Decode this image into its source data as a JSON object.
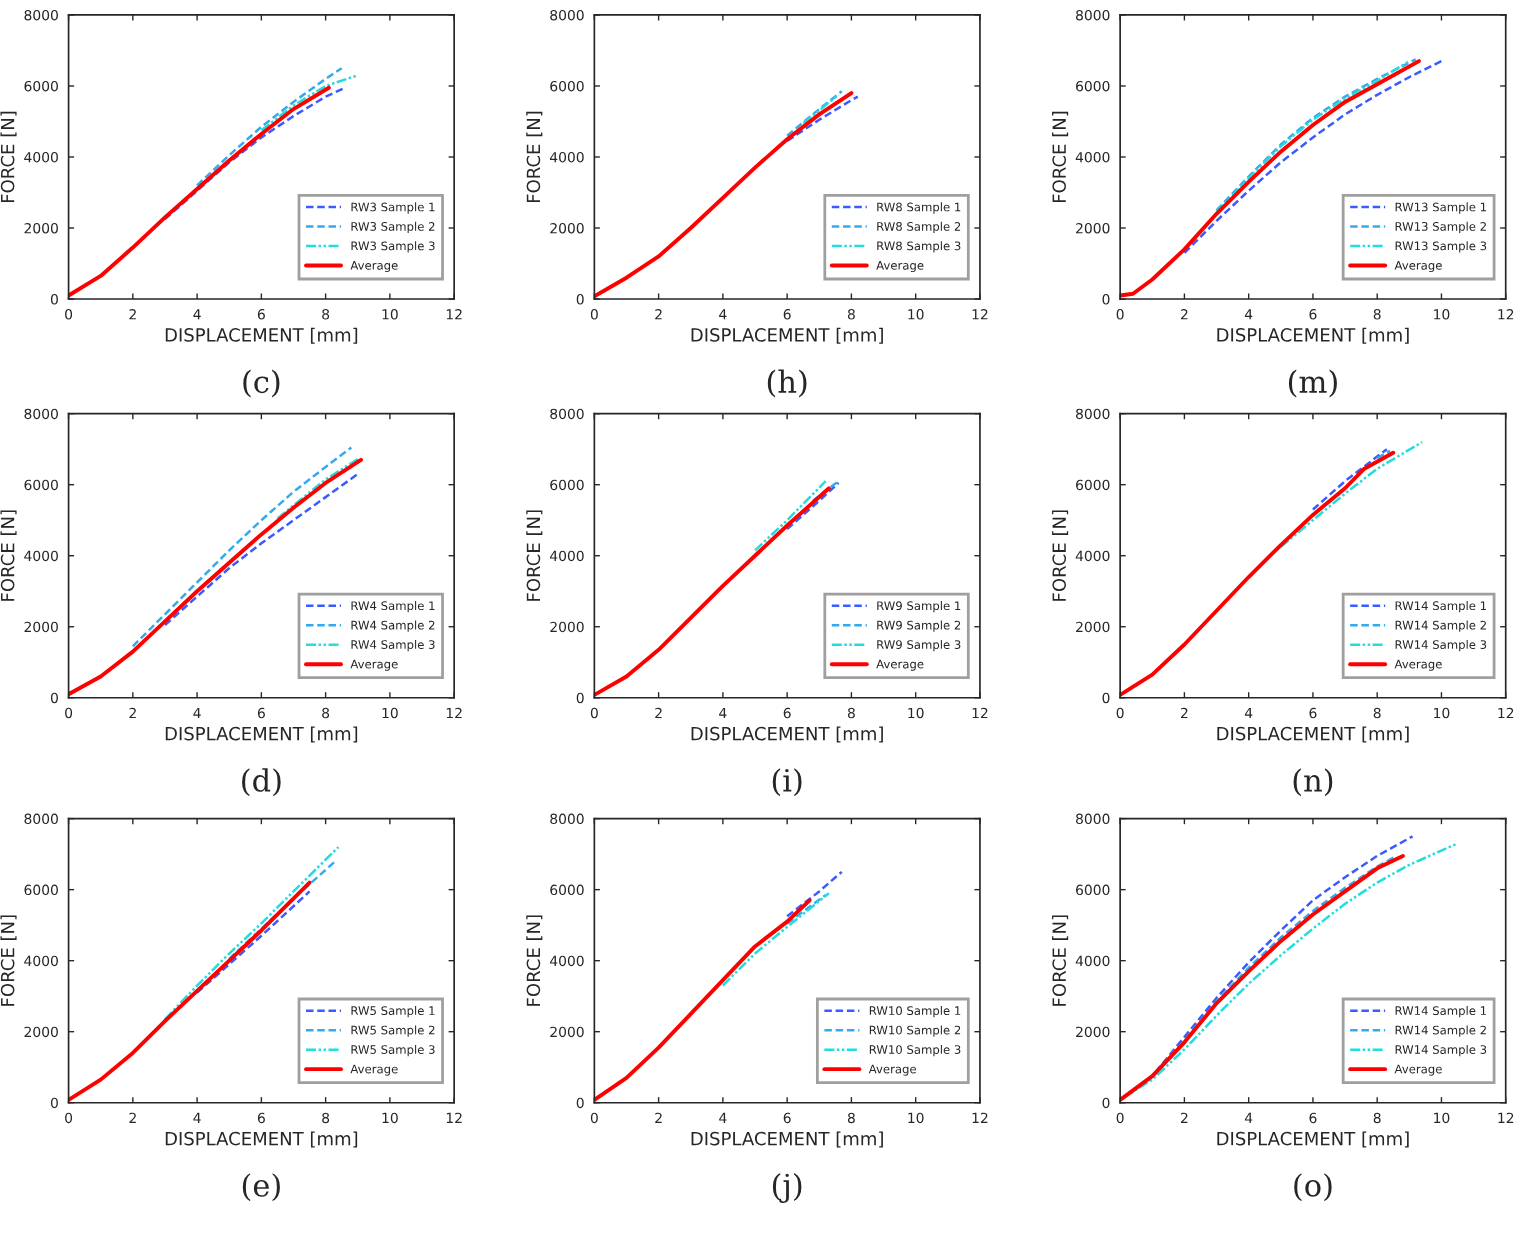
{
  "chart_data": [
    {
      "type": "line",
      "xlabel": "DISPLACEMENT [mm]",
      "ylabel": "FORCE [N]",
      "annotations": [
        "(c)"
      ],
      "xlim": [
        0,
        12
      ],
      "ylim": [
        0,
        8000
      ],
      "xticks": [
        0,
        2,
        4,
        6,
        8,
        10,
        12
      ],
      "yticks": [
        0,
        2000,
        4000,
        6000,
        8000
      ],
      "legend": "bottom right",
      "series": [
        {
          "name": "RW3 Sample 1",
          "color": "#3a5bff",
          "line_style": "dashed",
          "x": [
            3,
            4,
            5,
            6,
            7,
            8,
            8.6
          ],
          "values": [
            2250,
            3050,
            3850,
            4550,
            5150,
            5700,
            5950
          ]
        },
        {
          "name": "RW3 Sample 2",
          "color": "#33aaee",
          "line_style": "dashed",
          "x": [
            4,
            5,
            6,
            7,
            8,
            8.5
          ],
          "values": [
            3200,
            4050,
            4850,
            5550,
            6200,
            6500
          ]
        },
        {
          "name": "RW3 Sample 3",
          "color": "#22dddd",
          "line_style": "dotted",
          "x": [
            6,
            7,
            8,
            9
          ],
          "values": [
            4750,
            5450,
            6000,
            6300
          ]
        },
        {
          "name": "Average",
          "color": "#ff0000",
          "line_style": "solid",
          "x": [
            0,
            1,
            2,
            3,
            4,
            5,
            6,
            7,
            8.1
          ],
          "values": [
            100,
            650,
            1450,
            2300,
            3100,
            3900,
            4650,
            5350,
            5950
          ]
        }
      ]
    },
    {
      "type": "line",
      "xlabel": "DISPLACEMENT [mm]",
      "ylabel": "FORCE [N]",
      "annotations": [
        "(h)"
      ],
      "xlim": [
        0,
        12
      ],
      "ylim": [
        0,
        8000
      ],
      "xticks": [
        0,
        2,
        4,
        6,
        8,
        10,
        12
      ],
      "yticks": [
        0,
        2000,
        4000,
        6000,
        8000
      ],
      "legend": "bottom right",
      "series": [
        {
          "name": "RW8 Sample 1",
          "color": "#3a5bff",
          "line_style": "dashed",
          "x": [
            6,
            7,
            8,
            8.2
          ],
          "values": [
            4450,
            5050,
            5600,
            5700
          ]
        },
        {
          "name": "RW8 Sample 2",
          "color": "#33aaee",
          "line_style": "dashed",
          "x": [
            6,
            7,
            7.7
          ],
          "values": [
            4600,
            5350,
            5850
          ]
        },
        {
          "name": "RW8 Sample 3",
          "color": "#22dddd",
          "line_style": "dotted",
          "x": [
            6.5,
            7.6
          ],
          "values": [
            4950,
            5750
          ]
        },
        {
          "name": "Average",
          "color": "#ff0000",
          "line_style": "solid",
          "x": [
            0,
            1,
            2,
            3,
            4,
            5,
            6,
            7,
            8
          ],
          "values": [
            80,
            600,
            1200,
            2000,
            2850,
            3700,
            4500,
            5200,
            5800
          ]
        }
      ]
    },
    {
      "type": "line",
      "xlabel": "DISPLACEMENT [mm]",
      "ylabel": "FORCE [N]",
      "annotations": [
        "(m)"
      ],
      "xlim": [
        0,
        12
      ],
      "ylim": [
        0,
        8000
      ],
      "xticks": [
        0,
        2,
        4,
        6,
        8,
        10,
        12
      ],
      "yticks": [
        0,
        2000,
        4000,
        6000,
        8000
      ],
      "legend": "bottom right",
      "series": [
        {
          "name": "RW13 Sample 1",
          "color": "#3a5bff",
          "line_style": "dashed",
          "x": [
            2,
            3,
            4,
            5,
            6,
            7,
            8,
            9,
            10
          ],
          "values": [
            1300,
            2200,
            3050,
            3850,
            4550,
            5200,
            5750,
            6250,
            6700
          ]
        },
        {
          "name": "RW13 Sample 2",
          "color": "#33aaee",
          "line_style": "dashed",
          "x": [
            3,
            4,
            5,
            6,
            7,
            8,
            9.2
          ],
          "values": [
            2500,
            3450,
            4350,
            5100,
            5700,
            6200,
            6750
          ]
        },
        {
          "name": "RW13 Sample 3",
          "color": "#22dddd",
          "line_style": "dotted",
          "x": [
            3,
            4,
            5,
            6,
            7,
            8,
            9
          ],
          "values": [
            2450,
            3400,
            4300,
            5050,
            5650,
            6150,
            6700
          ]
        },
        {
          "name": "Average",
          "color": "#ff0000",
          "line_style": "solid",
          "x": [
            0,
            0.4,
            1,
            2,
            3,
            4,
            5,
            6,
            7,
            8,
            9.3
          ],
          "values": [
            100,
            150,
            550,
            1400,
            2400,
            3300,
            4150,
            4900,
            5550,
            6050,
            6700
          ]
        }
      ]
    },
    {
      "type": "line",
      "xlabel": "DISPLACEMENT [mm]",
      "ylabel": "FORCE [N]",
      "annotations": [
        "(d)"
      ],
      "xlim": [
        0,
        12
      ],
      "ylim": [
        0,
        8000
      ],
      "xticks": [
        0,
        2,
        4,
        6,
        8,
        10,
        12
      ],
      "yticks": [
        0,
        2000,
        4000,
        6000,
        8000
      ],
      "legend": "bottom right",
      "series": [
        {
          "name": "RW4 Sample 1",
          "color": "#3a5bff",
          "line_style": "dashed",
          "x": [
            3,
            4,
            5,
            6,
            7,
            8,
            9
          ],
          "values": [
            2050,
            2850,
            3650,
            4350,
            5000,
            5650,
            6300
          ]
        },
        {
          "name": "RW4 Sample 2",
          "color": "#33aaee",
          "line_style": "dashed",
          "x": [
            2,
            3,
            4,
            5,
            6,
            7,
            8,
            8.8
          ],
          "values": [
            1450,
            2350,
            3250,
            4150,
            5000,
            5800,
            6500,
            7050
          ]
        },
        {
          "name": "RW4 Sample 3",
          "color": "#22dddd",
          "line_style": "dotted",
          "x": [
            6.5,
            8,
            9.05
          ],
          "values": [
            5050,
            6150,
            6750
          ]
        },
        {
          "name": "Average",
          "color": "#ff0000",
          "line_style": "solid",
          "x": [
            0,
            1,
            2,
            3,
            4,
            5,
            6,
            7,
            8,
            9.1
          ],
          "values": [
            100,
            600,
            1300,
            2150,
            3000,
            3800,
            4600,
            5350,
            6050,
            6700
          ]
        }
      ]
    },
    {
      "type": "line",
      "xlabel": "DISPLACEMENT [mm]",
      "ylabel": "FORCE [N]",
      "annotations": [
        "(i)"
      ],
      "xlim": [
        0,
        12
      ],
      "ylim": [
        0,
        8000
      ],
      "xticks": [
        0,
        2,
        4,
        6,
        8,
        10,
        12
      ],
      "yticks": [
        0,
        2000,
        4000,
        6000,
        8000
      ],
      "legend": "bottom right",
      "series": [
        {
          "name": "RW9 Sample 1",
          "color": "#3a5bff",
          "line_style": "dashed",
          "x": [
            6,
            7,
            7.6
          ],
          "values": [
            4750,
            5550,
            6050
          ]
        },
        {
          "name": "RW9 Sample 2",
          "color": "#33aaee",
          "line_style": "dashed",
          "x": [
            6.8,
            7.6
          ],
          "values": [
            5550,
            6100
          ]
        },
        {
          "name": "RW9 Sample 3",
          "color": "#22dddd",
          "line_style": "dotted",
          "x": [
            5,
            6,
            7.2
          ],
          "values": [
            4150,
            5000,
            6100
          ]
        },
        {
          "name": "Average",
          "color": "#ff0000",
          "line_style": "solid",
          "x": [
            0,
            1,
            2,
            3,
            4,
            5,
            6,
            7.3
          ],
          "values": [
            80,
            600,
            1350,
            2250,
            3150,
            4000,
            4850,
            5900
          ]
        }
      ]
    },
    {
      "type": "line",
      "xlabel": "DISPLACEMENT [mm]",
      "ylabel": "FORCE [N]",
      "annotations": [
        "(n)"
      ],
      "xlim": [
        0,
        12
      ],
      "ylim": [
        0,
        8000
      ],
      "xticks": [
        0,
        2,
        4,
        6,
        8,
        10,
        12
      ],
      "yticks": [
        0,
        2000,
        4000,
        6000,
        8000
      ],
      "legend": "bottom right",
      "series": [
        {
          "name": "RW14 Sample 1",
          "color": "#3a5bff",
          "line_style": "dashed",
          "x": [
            6,
            7,
            8.3
          ],
          "values": [
            5300,
            6100,
            7000
          ]
        },
        {
          "name": "RW14 Sample 2",
          "color": "#33aaee",
          "line_style": "dashed",
          "x": [
            8,
            8.4
          ],
          "values": [
            6750,
            6950
          ]
        },
        {
          "name": "RW14 Sample 3",
          "color": "#22dddd",
          "line_style": "dotted",
          "x": [
            5,
            6,
            7,
            8,
            9.4
          ],
          "values": [
            4250,
            5000,
            5750,
            6450,
            7200
          ]
        },
        {
          "name": "Average",
          "color": "#ff0000",
          "line_style": "solid",
          "x": [
            0,
            1,
            2,
            3,
            4,
            5,
            6,
            7,
            7.6,
            8.5
          ],
          "values": [
            80,
            650,
            1500,
            2450,
            3400,
            4300,
            5150,
            5900,
            6450,
            6900
          ]
        }
      ]
    },
    {
      "type": "line",
      "xlabel": "DISPLACEMENT [mm]",
      "ylabel": "FORCE [N]",
      "annotations": [
        "(e)"
      ],
      "xlim": [
        0,
        12
      ],
      "ylim": [
        0,
        8000
      ],
      "xticks": [
        0,
        2,
        4,
        6,
        8,
        10,
        12
      ],
      "yticks": [
        0,
        2000,
        4000,
        6000,
        8000
      ],
      "legend": "bottom right",
      "series": [
        {
          "name": "RW5 Sample 1",
          "color": "#3a5bff",
          "line_style": "dashed",
          "x": [
            4,
            5,
            6,
            7.5
          ],
          "values": [
            3100,
            3900,
            4700,
            5950
          ]
        },
        {
          "name": "RW5 Sample 2",
          "color": "#33aaee",
          "line_style": "dashed",
          "x": [
            5,
            6,
            7,
            8.3
          ],
          "values": [
            4050,
            4900,
            5750,
            6800
          ]
        },
        {
          "name": "RW5 Sample 3",
          "color": "#22dddd",
          "line_style": "dotted",
          "x": [
            3,
            4,
            5,
            6,
            7,
            8.4
          ],
          "values": [
            2350,
            3300,
            4200,
            5050,
            5950,
            7200
          ]
        },
        {
          "name": "Average",
          "color": "#ff0000",
          "line_style": "solid",
          "x": [
            0,
            1,
            2,
            3,
            4,
            5,
            6,
            7.5
          ],
          "values": [
            80,
            650,
            1400,
            2300,
            3150,
            4000,
            4850,
            6200
          ]
        }
      ]
    },
    {
      "type": "line",
      "xlabel": "DISPLACEMENT [mm]",
      "ylabel": "FORCE [N]",
      "annotations": [
        "(j)"
      ],
      "xlim": [
        0,
        12
      ],
      "ylim": [
        0,
        8000
      ],
      "xticks": [
        0,
        2,
        4,
        6,
        8,
        10,
        12
      ],
      "yticks": [
        0,
        2000,
        4000,
        6000,
        8000
      ],
      "legend": "bottom right",
      "series": [
        {
          "name": "RW10 Sample 1",
          "color": "#3a5bff",
          "line_style": "dashed",
          "x": [
            6,
            7,
            7.7
          ],
          "values": [
            5250,
            5950,
            6500
          ]
        },
        {
          "name": "RW10 Sample 2",
          "color": "#33aaee",
          "line_style": "dashed",
          "x": [
            6,
            7.2
          ],
          "values": [
            5050,
            5850
          ]
        },
        {
          "name": "RW10 Sample 3",
          "color": "#22dddd",
          "line_style": "dotted",
          "x": [
            4,
            5,
            6,
            7.3
          ],
          "values": [
            3300,
            4200,
            4950,
            5900
          ]
        },
        {
          "name": "Average",
          "color": "#ff0000",
          "line_style": "solid",
          "x": [
            0,
            1,
            2,
            3,
            4,
            5,
            6,
            6.7
          ],
          "values": [
            80,
            700,
            1550,
            2500,
            3450,
            4400,
            5100,
            5700
          ]
        }
      ]
    },
    {
      "type": "line",
      "xlabel": "DISPLACEMENT [mm]",
      "ylabel": "FORCE [N]",
      "annotations": [
        "(o)"
      ],
      "xlim": [
        0,
        12
      ],
      "ylim": [
        0,
        8000
      ],
      "xticks": [
        0,
        2,
        4,
        6,
        8,
        10,
        12
      ],
      "yticks": [
        0,
        2000,
        4000,
        6000,
        8000
      ],
      "legend": "bottom right",
      "series": [
        {
          "name": "RW14 Sample 1",
          "color": "#3a5bff",
          "line_style": "dashed",
          "x": [
            0,
            1,
            2,
            3,
            4,
            5,
            6,
            7,
            8,
            9.1
          ],
          "values": [
            80,
            750,
            1850,
            2950,
            3950,
            4850,
            5700,
            6350,
            6950,
            7500
          ]
        },
        {
          "name": "RW14 Sample 2",
          "color": "#33aaee",
          "line_style": "dashed",
          "x": [
            0,
            1,
            2,
            3,
            4,
            5,
            6,
            7,
            8,
            8.6
          ],
          "values": [
            80,
            750,
            1750,
            2850,
            3800,
            4650,
            5400,
            6050,
            6650,
            6950
          ]
        },
        {
          "name": "RW14 Sample 3",
          "color": "#22dddd",
          "line_style": "dotted",
          "x": [
            0,
            1,
            2,
            3,
            4,
            5,
            6,
            7,
            8,
            9,
            10.5
          ],
          "values": [
            80,
            650,
            1500,
            2450,
            3350,
            4150,
            4900,
            5600,
            6200,
            6700,
            7300
          ]
        },
        {
          "name": "Average",
          "color": "#ff0000",
          "line_style": "solid",
          "x": [
            0,
            1,
            2,
            3,
            4,
            5,
            6,
            7,
            8,
            8.8
          ],
          "values": [
            80,
            750,
            1700,
            2800,
            3700,
            4550,
            5300,
            5950,
            6600,
            6950
          ]
        }
      ]
    }
  ]
}
